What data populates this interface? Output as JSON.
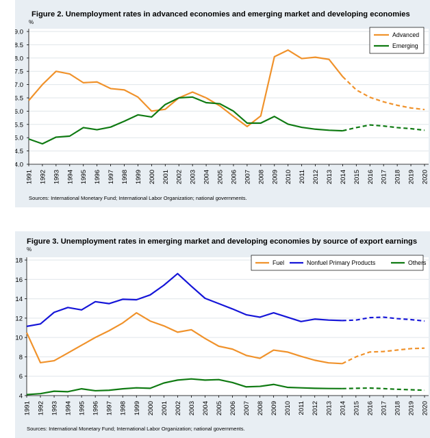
{
  "chart_data": [
    {
      "type": "line",
      "title": "Figure 2. Unemployment rates in advanced economies and emerging market and developing economies",
      "ylabel": "%",
      "xlabel": "",
      "ylim": [
        4.0,
        9.0
      ],
      "yticks": [
        4.0,
        4.5,
        5.0,
        5.5,
        6.0,
        6.5,
        7.0,
        7.5,
        8.0,
        8.5,
        9.0
      ],
      "ytick_labels": [
        "4.0",
        "4.5",
        "5.0",
        "5.5",
        "6.0",
        "6.5",
        "7.0",
        "7.5",
        "8.0",
        "8.5",
        "9.0"
      ],
      "x": [
        "1991",
        "1992",
        "1993",
        "1994",
        "1995",
        "1996",
        "1997",
        "1998",
        "1999",
        "2000",
        "2001",
        "2002",
        "2003",
        "2004",
        "2005",
        "2006",
        "2007",
        "2008",
        "2009",
        "2010",
        "2011",
        "2012",
        "2013",
        "2014",
        "2015",
        "2016",
        "2017",
        "2018",
        "2019",
        "2020"
      ],
      "projection_start": "2014",
      "legend_position": "top-right",
      "grid": "horizontal",
      "source": "Sources: International Monetary Fund; International Labor Organization; national governments.",
      "series": [
        {
          "name": "Advanced",
          "color": "#f0922b",
          "values": [
            6.4,
            7.0,
            7.5,
            7.4,
            7.07,
            7.1,
            6.85,
            6.8,
            6.53,
            6.0,
            6.07,
            6.5,
            6.72,
            6.5,
            6.2,
            5.8,
            5.42,
            5.82,
            8.05,
            8.3,
            7.98,
            8.03,
            7.95,
            7.3,
            6.8,
            6.52,
            6.35,
            6.22,
            6.12,
            6.06
          ]
        },
        {
          "name": "Emerging",
          "color": "#0f7a12",
          "values": [
            4.95,
            4.77,
            5.02,
            5.06,
            5.38,
            5.3,
            5.4,
            5.62,
            5.86,
            5.78,
            6.25,
            6.5,
            6.53,
            6.32,
            6.28,
            6.0,
            5.55,
            5.55,
            5.8,
            5.51,
            5.39,
            5.32,
            5.28,
            5.26,
            5.38,
            5.48,
            5.44,
            5.38,
            5.34,
            5.28
          ]
        }
      ]
    },
    {
      "type": "line",
      "title": "Figure 3. Unemployment rates in emerging market and developing economies by source of export earnings",
      "ylabel": "%",
      "xlabel": "",
      "ylim": [
        4,
        18
      ],
      "yticks": [
        4,
        6,
        8,
        10,
        12,
        14,
        16,
        18
      ],
      "ytick_labels": [
        "4",
        "6",
        "8",
        "10",
        "12",
        "14",
        "16",
        "18"
      ],
      "x": [
        "1991",
        "1992",
        "1993",
        "1994",
        "1995",
        "1996",
        "1997",
        "1998",
        "1999",
        "2000",
        "2001",
        "2002",
        "2003",
        "2004",
        "2005",
        "2006",
        "2007",
        "2008",
        "2009",
        "2010",
        "2011",
        "2012",
        "2013",
        "2014",
        "2015",
        "2016",
        "2017",
        "2018",
        "2019",
        "2020"
      ],
      "projection_start": "2014",
      "legend_position": "top-right",
      "grid": "horizontal",
      "source": "Sources: International Monetary Fund; International Labor Organization; national governments.",
      "series": [
        {
          "name": "Fuel",
          "color": "#f0922b",
          "values": [
            10.5,
            7.4,
            7.6,
            8.4,
            9.2,
            10.0,
            10.7,
            11.5,
            12.55,
            11.7,
            11.2,
            10.55,
            10.8,
            9.9,
            9.1,
            8.8,
            8.15,
            7.85,
            8.7,
            8.5,
            8.05,
            7.65,
            7.38,
            7.3,
            8.0,
            8.5,
            8.55,
            8.7,
            8.85,
            8.9
          ]
        },
        {
          "name": "Nonfuel Primary Products",
          "color": "#1515d8",
          "values": [
            11.15,
            11.4,
            12.6,
            13.1,
            12.85,
            13.7,
            13.5,
            13.95,
            13.9,
            14.4,
            15.4,
            16.6,
            15.3,
            14.05,
            13.5,
            12.95,
            12.35,
            12.1,
            12.55,
            12.1,
            11.65,
            11.9,
            11.8,
            11.75,
            11.8,
            12.05,
            12.1,
            11.95,
            11.85,
            11.7
          ]
        },
        {
          "name": "Others",
          "color": "#0f7a12",
          "values": [
            4.1,
            4.2,
            4.45,
            4.4,
            4.7,
            4.5,
            4.55,
            4.7,
            4.8,
            4.75,
            5.3,
            5.6,
            5.72,
            5.6,
            5.65,
            5.35,
            4.9,
            4.95,
            5.15,
            4.85,
            4.8,
            4.75,
            4.73,
            4.72,
            4.75,
            4.78,
            4.72,
            4.65,
            4.6,
            4.55
          ]
        }
      ]
    }
  ]
}
